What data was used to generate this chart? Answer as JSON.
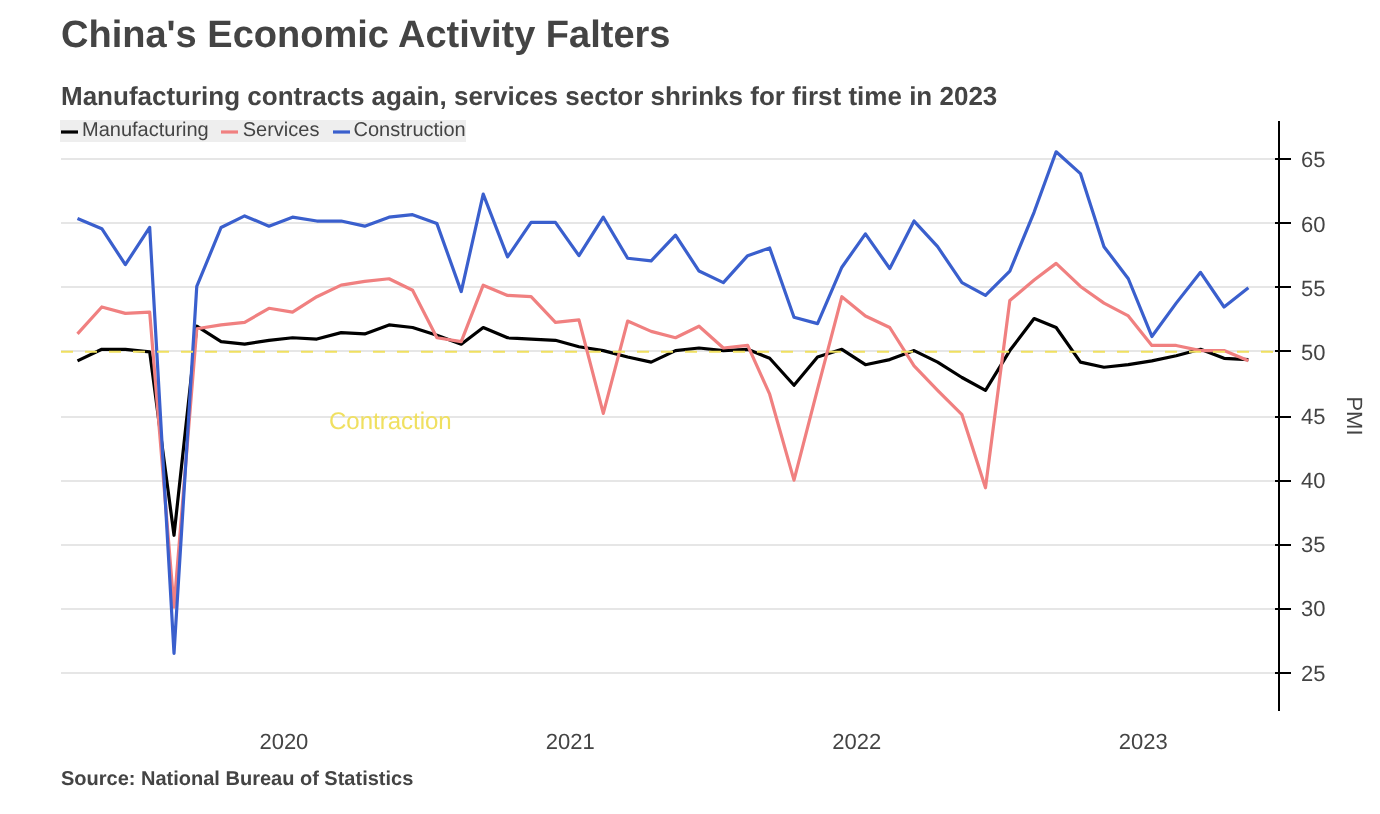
{
  "chart_data": {
    "type": "line",
    "title": "China's Economic Activity Falters",
    "subtitle": "Manufacturing contracts again, services sector shrinks for first time in 2023",
    "ylabel": "PMI",
    "x": [
      "2019-10",
      "2019-11",
      "2019-12",
      "2020-01",
      "2020-02",
      "2020-03",
      "2020-04",
      "2020-05",
      "2020-06",
      "2020-07",
      "2020-08",
      "2020-09",
      "2020-10",
      "2020-11",
      "2020-12",
      "2021-01",
      "2021-02",
      "2021-03",
      "2021-04",
      "2021-05",
      "2021-06",
      "2021-07",
      "2021-08",
      "2021-09",
      "2021-10",
      "2021-11",
      "2021-12",
      "2022-01",
      "2022-02",
      "2022-03",
      "2022-04",
      "2022-05",
      "2022-06",
      "2022-07",
      "2022-08",
      "2022-09",
      "2022-10",
      "2022-11",
      "2022-12",
      "2023-01",
      "2023-02",
      "2023-03",
      "2023-04",
      "2023-05",
      "2023-06",
      "2023-07",
      "2023-08",
      "2023-09",
      "2023-10",
      "2023-11"
    ],
    "series": [
      {
        "name": "Manufacturing",
        "color": "#000000",
        "values": [
          49.3,
          50.2,
          50.2,
          50.0,
          35.7,
          52.0,
          50.8,
          50.6,
          50.9,
          51.1,
          51.0,
          51.5,
          51.4,
          52.1,
          51.9,
          51.3,
          50.6,
          51.9,
          51.1,
          51.0,
          50.9,
          50.4,
          50.1,
          49.6,
          49.2,
          50.1,
          50.3,
          50.1,
          50.2,
          49.5,
          47.4,
          49.6,
          50.2,
          49.0,
          49.4,
          50.1,
          49.2,
          48.0,
          47.0,
          50.1,
          52.6,
          51.9,
          49.2,
          48.8,
          49.0,
          49.3,
          49.7,
          50.2,
          49.5,
          49.4
        ]
      },
      {
        "name": "Services",
        "color": "#f08080",
        "values": [
          51.4,
          53.5,
          53.0,
          53.1,
          30.1,
          51.8,
          52.1,
          52.3,
          53.4,
          53.1,
          54.3,
          55.2,
          55.5,
          55.7,
          54.8,
          51.1,
          50.8,
          55.2,
          54.4,
          54.3,
          52.3,
          52.5,
          45.2,
          52.4,
          51.6,
          51.1,
          52.0,
          50.3,
          50.5,
          46.7,
          40.0,
          47.1,
          54.3,
          52.8,
          51.9,
          48.9,
          47.0,
          45.1,
          39.4,
          54.0,
          55.6,
          56.9,
          55.1,
          53.8,
          52.8,
          50.5,
          50.5,
          50.1,
          50.1,
          49.3
        ]
      },
      {
        "name": "Construction",
        "color": "#3a5fcd",
        "values": [
          60.4,
          59.6,
          56.8,
          59.7,
          26.5,
          55.1,
          59.7,
          60.6,
          59.8,
          60.5,
          60.2,
          60.2,
          59.8,
          60.5,
          60.7,
          60.0,
          54.7,
          62.3,
          57.4,
          60.1,
          60.1,
          57.5,
          60.5,
          57.3,
          57.1,
          59.1,
          56.3,
          55.4,
          57.5,
          58.1,
          52.7,
          52.2,
          56.6,
          59.2,
          56.5,
          60.2,
          58.2,
          55.4,
          54.4,
          56.3,
          60.9,
          65.6,
          63.9,
          58.2,
          55.7,
          51.2,
          53.8,
          56.2,
          53.5,
          55.0
        ]
      }
    ],
    "xlim": [
      "2019-09-10",
      "2023-12-10"
    ],
    "xticks": [
      {
        "value": "2020-06-20",
        "label": "2020"
      },
      {
        "value": "2021-06-20",
        "label": "2021"
      },
      {
        "value": "2022-06-20",
        "label": "2022"
      },
      {
        "value": "2023-06-20",
        "label": "2023"
      }
    ],
    "ylim": [
      22,
      68
    ],
    "yticks": [
      25,
      30,
      35,
      40,
      45,
      50,
      55,
      60,
      65
    ],
    "ref_lines": [
      {
        "axis": "y",
        "value": 50,
        "label": "Contraction",
        "color": "#f0e060",
        "line_style": "dashed"
      }
    ],
    "annotations": [
      "Source: National Bureau of Statistics"
    ],
    "grid": "y",
    "legend": "top left",
    "marker": "none",
    "line_style": "solid"
  }
}
